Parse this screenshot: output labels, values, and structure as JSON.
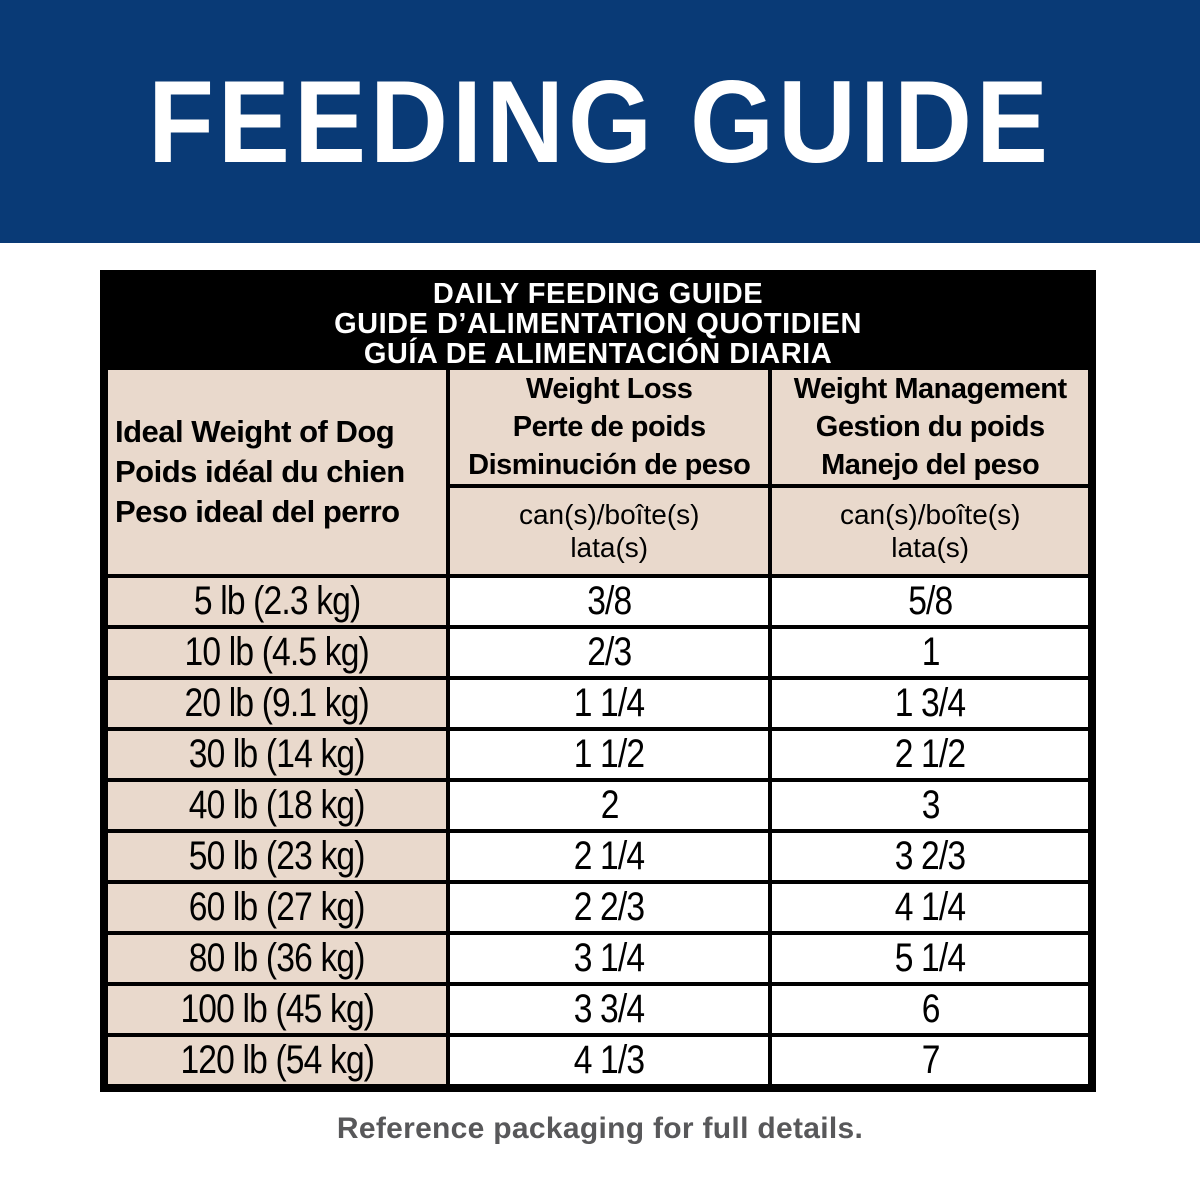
{
  "banner": {
    "title": "FEEDING GUIDE"
  },
  "table": {
    "title": {
      "en": "DAILY FEEDING GUIDE",
      "fr": "GUIDE D’ALIMENTATION QUOTIDIEN",
      "es": "GUÍA DE ALIMENTACIÓN DIARIA"
    },
    "columns": {
      "weight": {
        "en": "Ideal Weight of Dog",
        "fr": "Poids idéal du chien",
        "es": "Peso ideal del perro"
      },
      "weight_loss": {
        "en": "Weight Loss",
        "fr": "Perte de poids",
        "es": "Disminución de peso"
      },
      "weight_management": {
        "en": "Weight Management",
        "fr": "Gestion du poids",
        "es": "Manejo del peso"
      }
    },
    "units": {
      "can_line": "can(s)/boîte(s)",
      "lata_line": "lata(s)"
    },
    "rows": [
      {
        "weight": "5 lb (2.3 kg)",
        "loss": "3/8",
        "management": "5/8"
      },
      {
        "weight": "10 lb (4.5 kg)",
        "loss": "2/3",
        "management": "1"
      },
      {
        "weight": "20 lb (9.1 kg)",
        "loss": "1 1/4",
        "management": "1 3/4"
      },
      {
        "weight": "30 lb (14 kg)",
        "loss": "1 1/2",
        "management": "2 1/2"
      },
      {
        "weight": "40 lb (18 kg)",
        "loss": "2",
        "management": "3"
      },
      {
        "weight": "50 lb (23 kg)",
        "loss": "2 1/4",
        "management": "3 2/3"
      },
      {
        "weight": "60 lb (27 kg)",
        "loss": "2 2/3",
        "management": "4 1/4"
      },
      {
        "weight": "80 lb (36 kg)",
        "loss": "3 1/4",
        "management": "5 1/4"
      },
      {
        "weight": "100 lb (45 kg)",
        "loss": "3 3/4",
        "management": "6"
      },
      {
        "weight": "120 lb (54 kg)",
        "loss": "4 1/3",
        "management": "7"
      }
    ]
  },
  "footer": {
    "note": "Reference packaging for full details."
  },
  "colors": {
    "banner_blue": "#093a76",
    "header_black": "#000000",
    "cell_beige": "#e9d9cc",
    "footer_gray": "#58585a"
  }
}
